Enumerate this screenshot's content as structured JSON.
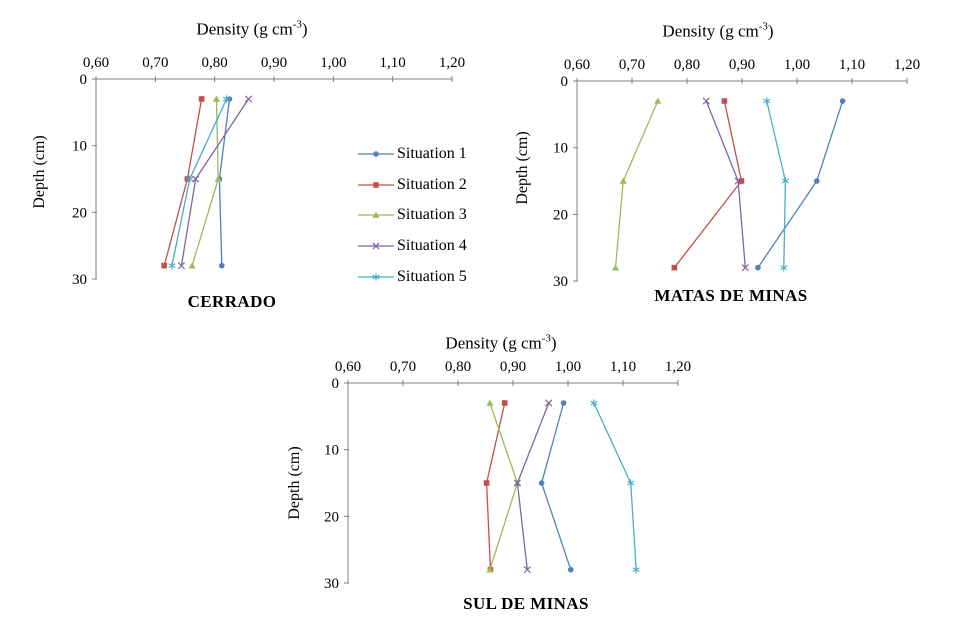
{
  "page": {
    "background": "#ffffff"
  },
  "axes_shared": {
    "x_title": {
      "prefix": "Density  (g cm",
      "sup": "-3",
      "suffix": ")"
    },
    "y_title": "Depth  (cm)",
    "x_tick_labels": [
      "0,60",
      "0,70",
      "0,80",
      "0,90",
      "1,00",
      "1,10",
      "1,20"
    ],
    "x_tick_values": [
      0.6,
      0.7,
      0.8,
      0.9,
      1.0,
      1.1,
      1.2
    ],
    "y_tick_labels": [
      "0",
      "10",
      "20",
      "30"
    ],
    "y_tick_values": [
      0,
      10,
      20,
      30
    ],
    "axis_color": "#808080",
    "text_color": "#000000"
  },
  "legend": {
    "items": [
      {
        "label": "Situation 1",
        "color": "#4F81BD",
        "marker": "circle"
      },
      {
        "label": "Situation 2",
        "color": "#C0504D",
        "marker": "square"
      },
      {
        "label": "Situation 3",
        "color": "#9BBB59",
        "marker": "triangle"
      },
      {
        "label": "Situation 4",
        "color": "#8064A2",
        "marker": "x"
      },
      {
        "label": "Situation 5",
        "color": "#4BACC6",
        "marker": "asterisk"
      }
    ]
  },
  "chart_data": [
    {
      "type": "line",
      "title": "CERRADO",
      "xlabel": "Density (g cm⁻³)",
      "ylabel": "Depth (cm)",
      "xlim": [
        0.6,
        1.2
      ],
      "ylim": [
        0,
        30
      ],
      "y_inverted": true,
      "grid": false,
      "depths_cm": [
        3,
        15,
        28
      ],
      "series": [
        {
          "name": "Situation 1",
          "color": "#4F81BD",
          "marker": "circle",
          "values": [
            0.825,
            0.808,
            0.812
          ]
        },
        {
          "name": "Situation 2",
          "color": "#C0504D",
          "marker": "square",
          "values": [
            0.778,
            0.754,
            0.715
          ]
        },
        {
          "name": "Situation 3",
          "color": "#9BBB59",
          "marker": "triangle",
          "values": [
            0.803,
            0.806,
            0.762
          ]
        },
        {
          "name": "Situation 4",
          "color": "#8064A2",
          "marker": "x",
          "values": [
            0.857,
            0.768,
            0.744
          ]
        },
        {
          "name": "Situation 5",
          "color": "#4BACC6",
          "marker": "asterisk",
          "values": [
            0.82,
            0.758,
            0.728
          ]
        }
      ]
    },
    {
      "type": "line",
      "title": "MATAS DE MINAS",
      "xlabel": "Density (g cm⁻³)",
      "ylabel": "Depth (cm)",
      "xlim": [
        0.6,
        1.2
      ],
      "ylim": [
        0,
        30
      ],
      "y_inverted": true,
      "grid": false,
      "depths_cm": [
        3,
        15,
        28
      ],
      "series": [
        {
          "name": "Situation 1",
          "color": "#4F81BD",
          "marker": "circle",
          "values": [
            1.083,
            1.036,
            0.929
          ]
        },
        {
          "name": "Situation 2",
          "color": "#C0504D",
          "marker": "square",
          "values": [
            0.868,
            0.899,
            0.777
          ]
        },
        {
          "name": "Situation 3",
          "color": "#9BBB59",
          "marker": "triangle",
          "values": [
            0.747,
            0.684,
            0.67
          ]
        },
        {
          "name": "Situation 4",
          "color": "#8064A2",
          "marker": "x",
          "values": [
            0.835,
            0.893,
            0.906
          ]
        },
        {
          "name": "Situation 5",
          "color": "#4BACC6",
          "marker": "asterisk",
          "values": [
            0.945,
            0.979,
            0.976
          ]
        }
      ]
    },
    {
      "type": "line",
      "title": "SUL DE MINAS",
      "xlabel": "Density (g cm⁻³)",
      "ylabel": "Depth (cm)",
      "xlim": [
        0.6,
        1.2
      ],
      "ylim": [
        0,
        30
      ],
      "y_inverted": true,
      "grid": false,
      "depths_cm": [
        3,
        15,
        28
      ],
      "series": [
        {
          "name": "Situation 1",
          "color": "#4F81BD",
          "marker": "circle",
          "values": [
            0.992,
            0.952,
            1.005
          ]
        },
        {
          "name": "Situation 2",
          "color": "#C0504D",
          "marker": "square",
          "values": [
            0.885,
            0.852,
            0.859
          ]
        },
        {
          "name": "Situation 3",
          "color": "#9BBB59",
          "marker": "triangle",
          "values": [
            0.858,
            0.908,
            0.858
          ]
        },
        {
          "name": "Situation 4",
          "color": "#8064A2",
          "marker": "x",
          "values": [
            0.965,
            0.908,
            0.926
          ]
        },
        {
          "name": "Situation 5",
          "color": "#4BACC6",
          "marker": "asterisk",
          "values": [
            1.047,
            1.114,
            1.124
          ]
        }
      ]
    }
  ]
}
